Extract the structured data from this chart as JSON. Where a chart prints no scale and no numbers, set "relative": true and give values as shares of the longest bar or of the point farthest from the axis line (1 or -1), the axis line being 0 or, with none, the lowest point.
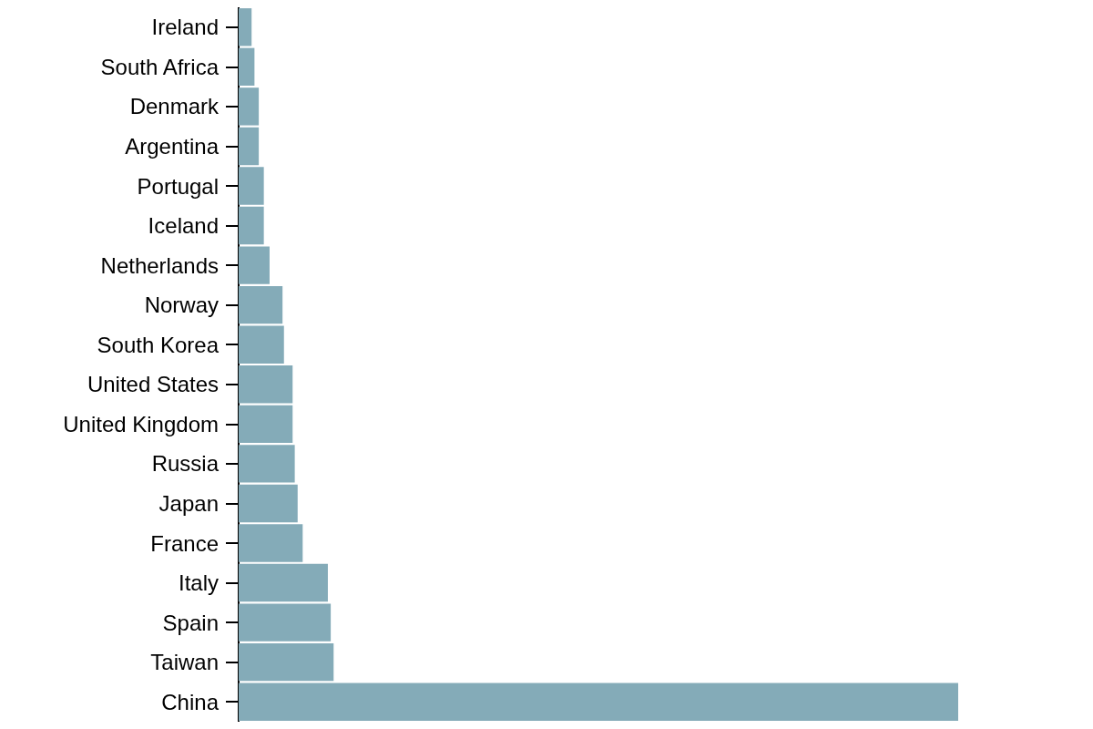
{
  "chart_data": {
    "type": "bar",
    "orientation": "horizontal",
    "relative": true,
    "categories": [
      "Ireland",
      "South Africa",
      "Denmark",
      "Argentina",
      "Portugal",
      "Iceland",
      "Netherlands",
      "Norway",
      "South Korea",
      "United States",
      "United Kingdom",
      "Russia",
      "Japan",
      "France",
      "Italy",
      "Spain",
      "Taiwan",
      "China"
    ],
    "values": [
      0.018,
      0.022,
      0.028,
      0.028,
      0.035,
      0.035,
      0.043,
      0.061,
      0.063,
      0.075,
      0.075,
      0.078,
      0.082,
      0.089,
      0.124,
      0.128,
      0.132,
      1
    ],
    "color": "#84abb8"
  }
}
